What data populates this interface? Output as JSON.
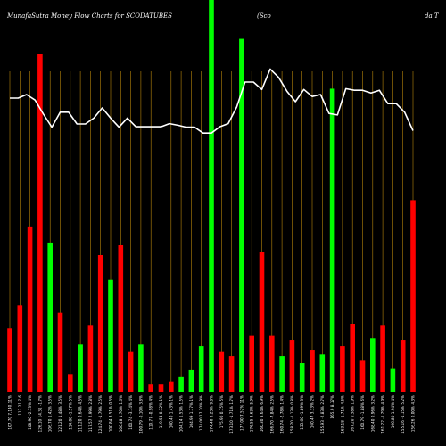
{
  "chart_data": {
    "type": "bar",
    "title_parts": [
      "MunafaSutra  Money Flow  Charts for SCODATUBES",
      "(Sco",
      "da  T"
    ],
    "colors": {
      "up": "#00ff00",
      "down": "#ff0000",
      "line": "#ffffff",
      "grid": "#b8860b",
      "background": "#000000"
    },
    "ylim": [
      0,
      100
    ],
    "bars": [
      {
        "label": "107.70 7,140.11%",
        "value": 16.3,
        "direction": "down"
      },
      {
        "label": "112.21 7.6",
        "value": 22.2,
        "direction": "down"
      },
      {
        "label": "108.90 -2.13% 4%",
        "value": 42.3,
        "direction": "down"
      },
      {
        "label": "126.10 14.31 -1.7%",
        "value": 86.3,
        "direction": "down"
      },
      {
        "label": "106.70 1.42% 3.5%",
        "value": 38.2,
        "direction": "up"
      },
      {
        "label": "121.20 1.48% 3.5%",
        "value": 20.3,
        "direction": "down"
      },
      {
        "label": "114.08 -1.57% 5%",
        "value": 4.7,
        "direction": "down"
      },
      {
        "label": "111.20 0.64% 4.5%",
        "value": 12.2,
        "direction": "up"
      },
      {
        "label": "117.57 2.99% 2.8%",
        "value": 17.2,
        "direction": "down"
      },
      {
        "label": "124.74 -1.79% 2.5%",
        "value": 35.0,
        "direction": "down"
      },
      {
        "label": "100.84 3.51% 0.5%",
        "value": 28.7,
        "direction": "up"
      },
      {
        "label": "100.48 1.70% 1.6%",
        "value": 37.5,
        "direction": "down"
      },
      {
        "label": "100.74 -3.14% 4%",
        "value": 10.3,
        "direction": "down"
      },
      {
        "label": "100.79 -0.10% 3.8%",
        "value": 12.2,
        "direction": "up"
      },
      {
        "label": "110.77 -0.98% 4%",
        "value": 2.0,
        "direction": "down"
      },
      {
        "label": "119.54 0.32% 1%",
        "value": 2.0,
        "direction": "down"
      },
      {
        "label": "100.40 1.43% 1%",
        "value": 2.8,
        "direction": "down"
      },
      {
        "label": "104.14 1.53% 1.5%",
        "value": 3.9,
        "direction": "up"
      },
      {
        "label": "104.99 1.77% 1%",
        "value": 5.7,
        "direction": "up"
      },
      {
        "label": "174.00 17.20% 9%",
        "value": 11.8,
        "direction": "up"
      },
      {
        "label": "174.40 0.23% 9.8%",
        "value": 100,
        "direction": "up"
      },
      {
        "label": "175.90 0.75% 5%",
        "value": 10.3,
        "direction": "down"
      },
      {
        "label": "173.10 -1.71% 1.7%",
        "value": 9.3,
        "direction": "down"
      },
      {
        "label": "177.00 7.52% 11%",
        "value": 90.1,
        "direction": "up"
      },
      {
        "label": "176.55 3.63% 5.9%",
        "value": 14.4,
        "direction": "down"
      },
      {
        "label": "160.30 3.64% 6.9%",
        "value": 35.8,
        "direction": "down"
      },
      {
        "label": "166.70 -7.84% 2.5%",
        "value": 14.4,
        "direction": "down"
      },
      {
        "label": "160.74 -2.78% 1.4%",
        "value": 9.3,
        "direction": "up"
      },
      {
        "label": "158.70 -1.13% 0.8%",
        "value": 13.4,
        "direction": "down"
      },
      {
        "label": "155.60 -1.89% 3%",
        "value": 7.5,
        "direction": "up"
      },
      {
        "label": "160.47 3.33% 2%",
        "value": 10.9,
        "direction": "down"
      },
      {
        "label": "155.93 -2.83% 2.7%",
        "value": 9.7,
        "direction": "up"
      },
      {
        "label": "165.9 8.17%",
        "value": 77.4,
        "direction": "up"
      },
      {
        "label": "163.18 -1.71% 4.6%",
        "value": 11.8,
        "direction": "down"
      },
      {
        "label": "167.20 0.58% 1.9%",
        "value": 17.5,
        "direction": "down"
      },
      {
        "label": "160.79 -1.88% 6%",
        "value": 8.1,
        "direction": "down"
      },
      {
        "label": "168.40 0.96% 3.2%",
        "value": 13.8,
        "direction": "up"
      },
      {
        "label": "161.22 -1.29% 4.9%",
        "value": 17.2,
        "direction": "down"
      },
      {
        "label": "166.80 1.94% 4%",
        "value": 6.0,
        "direction": "up"
      },
      {
        "label": "155.16 -1.15% 5.2%",
        "value": 13.4,
        "direction": "down"
      },
      {
        "label": "156.26 0.00% 4.3%",
        "value": 49.0,
        "direction": "down"
      }
    ],
    "line": [
      75.0,
      75.0,
      75.9,
      74.5,
      70.9,
      67.6,
      71.4,
      71.4,
      68.4,
      68.4,
      69.9,
      72.5,
      69.9,
      67.6,
      69.9,
      67.7,
      67.7,
      67.7,
      67.7,
      68.5,
      68.1,
      67.6,
      67.6,
      66.1,
      66.1,
      67.7,
      68.5,
      72.7,
      79.1,
      79.1,
      77.2,
      82.4,
      80.3,
      76.7,
      74.1,
      77.2,
      75.4,
      75.9,
      71.1,
      70.7,
      77.4,
      77.0,
      77.0,
      76.3,
      77.0,
      73.6,
      73.6,
      71.4,
      66.7
    ]
  }
}
